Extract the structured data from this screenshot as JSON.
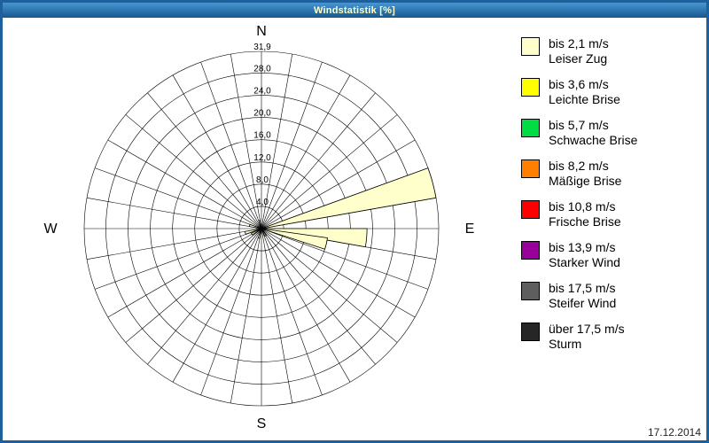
{
  "window": {
    "title": "Windstatistik [%]"
  },
  "footer": {
    "date": "17.12.2014"
  },
  "compass": {
    "north": "N",
    "east": "E",
    "south": "S",
    "west": "W"
  },
  "legend": {
    "items": [
      {
        "color": "#FFFFCC",
        "speed": "bis 2,1 m/s",
        "name": "Leiser Zug"
      },
      {
        "color": "#FFFF00",
        "speed": "bis 3,6 m/s",
        "name": "Leichte Brise"
      },
      {
        "color": "#00DD44",
        "speed": "bis 5,7 m/s",
        "name": "Schwache Brise"
      },
      {
        "color": "#FF8000",
        "speed": "bis 8,2 m/s",
        "name": "Mäßige Brise"
      },
      {
        "color": "#FF0000",
        "speed": "bis 10,8 m/s",
        "name": "Frische Brise"
      },
      {
        "color": "#990099",
        "speed": "bis 13,9 m/s",
        "name": "Starker Wind"
      },
      {
        "color": "#5E5E5E",
        "speed": "bis 17,5 m/s",
        "name": "Steifer Wind"
      },
      {
        "color": "#262626",
        "speed": "über 17,5 m/s",
        "name": "Sturm"
      }
    ]
  },
  "chart_data": {
    "type": "windrose",
    "title": "Windstatistik [%]",
    "unit": "%",
    "max_value": 31.9,
    "rings": [
      {
        "value": 4.0,
        "label": "4,0"
      },
      {
        "value": 8.0,
        "label": "8,0"
      },
      {
        "value": 12.0,
        "label": "12,0"
      },
      {
        "value": 16.0,
        "label": "16,0"
      },
      {
        "value": 20.0,
        "label": "20,0"
      },
      {
        "value": 24.0,
        "label": "24,0"
      },
      {
        "value": 28.0,
        "label": "28,0"
      },
      {
        "value": 31.9,
        "label": "31,9"
      }
    ],
    "spoke_step_deg": 10,
    "sector_width_deg": 10,
    "series": [
      {
        "name": "bis 2,1 m/s",
        "color": "#FFFFCC",
        "points": [
          {
            "dir_deg": 75,
            "value": 31.9
          },
          {
            "dir_deg": 95,
            "value": 19.0
          },
          {
            "dir_deg": 103,
            "value": 12.0
          },
          {
            "dir_deg": 255,
            "value": 3.0
          },
          {
            "dir_deg": 240,
            "value": 2.0
          },
          {
            "dir_deg": 285,
            "value": 2.2
          },
          {
            "dir_deg": 195,
            "value": 1.8
          },
          {
            "dir_deg": 150,
            "value": 1.5
          },
          {
            "dir_deg": 345,
            "value": 1.5
          }
        ]
      }
    ],
    "legend_position": "right",
    "grid": true
  }
}
